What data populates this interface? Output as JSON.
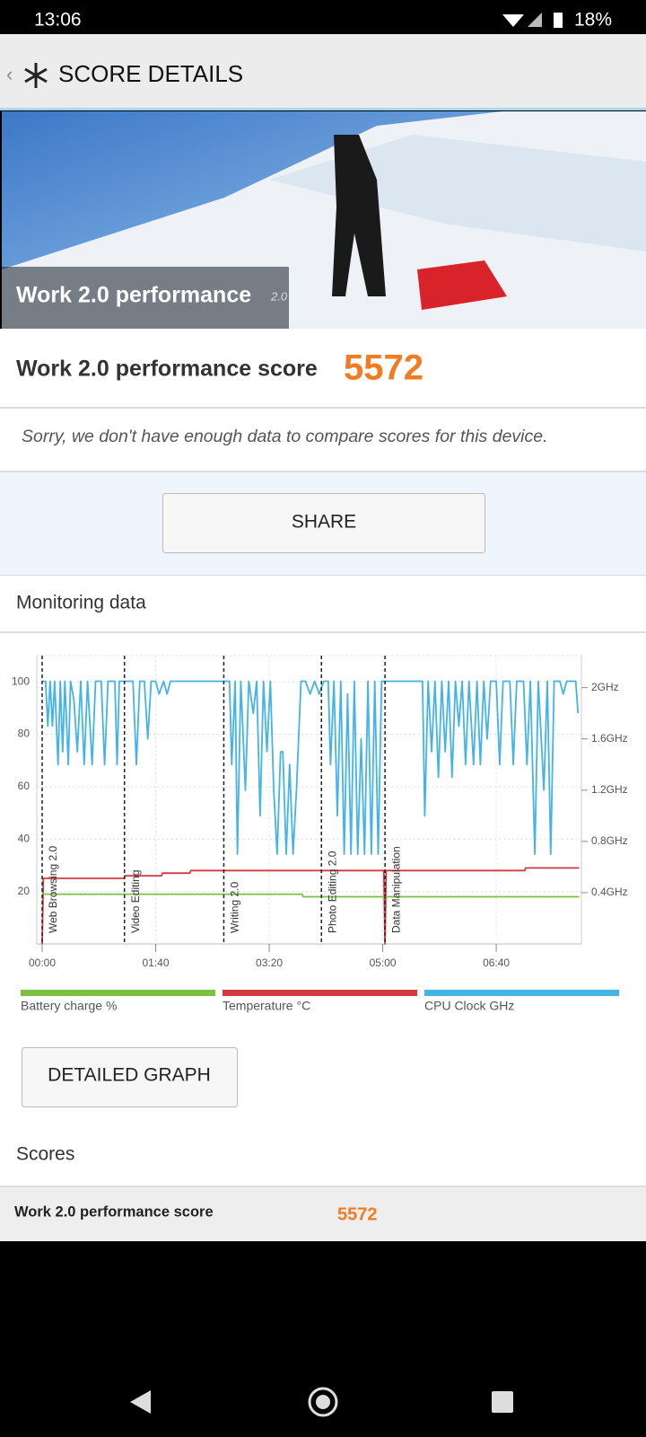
{
  "status_bar": {
    "time": "13:06",
    "battery": "18%"
  },
  "header": {
    "title": "SCORE DETAILS"
  },
  "hero": {
    "title": "Work 2.0 performance",
    "version": "2.0"
  },
  "score": {
    "label": "Work 2.0 performance score",
    "value": 5572
  },
  "message": "Sorry, we don't have enough data to compare scores for this device.",
  "share_button": "SHARE",
  "monitoring": {
    "title": "Monitoring data"
  },
  "chart_data": {
    "type": "line",
    "xlim": [
      0,
      475
    ],
    "xticks": [
      {
        "value": 0,
        "label": "00:00"
      },
      {
        "value": 100,
        "label": "01:40"
      },
      {
        "value": 200,
        "label": "03:20"
      },
      {
        "value": 300,
        "label": "05:00"
      },
      {
        "value": 400,
        "label": "06:40"
      }
    ],
    "ylim": [
      0,
      110
    ],
    "yticks": [
      20,
      40,
      60,
      80,
      100
    ],
    "y2lim": [
      0,
      2.25
    ],
    "y2ticks": [
      {
        "value": 0.4,
        "label": "0.4GHz"
      },
      {
        "value": 0.8,
        "label": "0.8GHz"
      },
      {
        "value": 1.2,
        "label": "1.2GHz"
      },
      {
        "value": 1.6,
        "label": "1.6GHz"
      },
      {
        "value": 2,
        "label": "2GHz"
      }
    ],
    "grid": true,
    "legend": "bottom",
    "annotations": [
      {
        "x": 0,
        "label": "Web Browsing 2.0"
      },
      {
        "x": 72.5,
        "label": "Video Editing"
      },
      {
        "x": 160,
        "label": "Writing 2.0"
      },
      {
        "x": 246,
        "label": "Photo Editing 2.0"
      },
      {
        "x": 302,
        "label": "Data Manipulation"
      }
    ],
    "series": [
      {
        "name": "Battery charge %",
        "color": "#7cc043",
        "x": [
          0,
          229,
          230,
          473
        ],
        "values": [
          19,
          19,
          18,
          18
        ]
      },
      {
        "name": "Temperature °C",
        "color": "#d23a3f",
        "x": [
          0,
          1,
          72,
          73,
          105,
          106,
          130,
          131,
          301,
          302,
          303,
          425,
          426,
          473
        ],
        "values": [
          0,
          25,
          25,
          26,
          26,
          27,
          27,
          28,
          28,
          0,
          28,
          28,
          29,
          29
        ]
      },
      {
        "name": "CPU Clock GHz",
        "color": "#45b3e6",
        "axis": "y2",
        "x": [
          0,
          3,
          5,
          7,
          9,
          11,
          14,
          16,
          18,
          20,
          23,
          25,
          28,
          31,
          34,
          37,
          40,
          44,
          47,
          52,
          55,
          58,
          64,
          66,
          68,
          80,
          83,
          86,
          90,
          93,
          96,
          100,
          103,
          107,
          110,
          113,
          165,
          167,
          170,
          172,
          175,
          179,
          182,
          186,
          189,
          192,
          195,
          198,
          201,
          204,
          207,
          210,
          212,
          215,
          218,
          221,
          224,
          228,
          232,
          236,
          240,
          244,
          248,
          252,
          254,
          257,
          260,
          263,
          266,
          269,
          272,
          275,
          278,
          281,
          284,
          287,
          290,
          293,
          296,
          299,
          335,
          337,
          340,
          343,
          346,
          349,
          352,
          355,
          358,
          361,
          364,
          367,
          370,
          373,
          376,
          380,
          383,
          386,
          389,
          392,
          395,
          400,
          403,
          406,
          412,
          415,
          418,
          424,
          427,
          430,
          434,
          437,
          442,
          445,
          448,
          451,
          456,
          459,
          462,
          470,
          472
        ],
        "values": [
          2.05,
          2.05,
          1.7,
          2.05,
          1.7,
          2.05,
          1.4,
          2.05,
          1.5,
          2.05,
          1.4,
          2.05,
          1.9,
          1.5,
          2.05,
          1.4,
          2.05,
          1.4,
          2.05,
          2.05,
          1.4,
          2.05,
          2.05,
          1.4,
          2.05,
          2.05,
          1.4,
          2.05,
          2.05,
          1.6,
          2.05,
          2.05,
          1.95,
          2.05,
          1.95,
          2.05,
          2.05,
          1.4,
          2.05,
          0.7,
          2.05,
          1.2,
          2.05,
          1.8,
          2.05,
          1.0,
          2.05,
          1.5,
          2.05,
          1.2,
          0.7,
          1.5,
          1.5,
          0.7,
          1.4,
          0.7,
          1.2,
          2.05,
          2.05,
          1.95,
          2.05,
          1.95,
          2.05,
          2.05,
          1.4,
          2.05,
          1.0,
          2.05,
          0.7,
          1.95,
          0.7,
          2.05,
          0.7,
          1.6,
          0.7,
          2.05,
          0.7,
          2.05,
          0.7,
          2.05,
          2.05,
          1.0,
          2.05,
          1.5,
          2.05,
          1.3,
          2.05,
          1.5,
          2.05,
          1.3,
          2.05,
          1.7,
          2.05,
          1.4,
          2.05,
          1.4,
          2.05,
          1.4,
          2.05,
          1.6,
          2.05,
          2.05,
          1.4,
          2.05,
          2.05,
          1.4,
          2.05,
          2.05,
          1.4,
          2.05,
          0.7,
          2.05,
          1.2,
          2.05,
          0.7,
          2.05,
          2.05,
          1.95,
          2.05,
          2.05,
          1.8
        ]
      }
    ]
  },
  "detailed_button": "DETAILED GRAPH",
  "scores": {
    "title": "Scores",
    "rows": [
      [
        "Work 2.0 performance score",
        5572
      ]
    ]
  }
}
